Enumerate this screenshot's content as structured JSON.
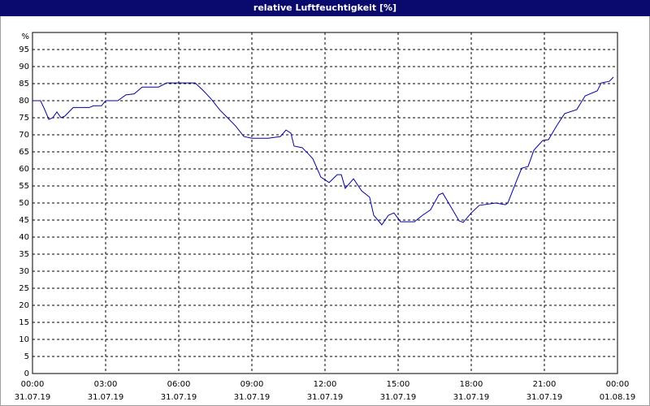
{
  "chart_data": {
    "type": "line",
    "title": "relative Luftfeuchtigkeit [%]",
    "y_label": "%",
    "xlim": [
      0,
      24
    ],
    "xticks": [
      {
        "value": 0,
        "label": "00:00",
        "date": "31.07.19"
      },
      {
        "value": 3,
        "label": "03:00",
        "date": "31.07.19"
      },
      {
        "value": 6,
        "label": "06:00",
        "date": "31.07.19"
      },
      {
        "value": 9,
        "label": "09:00",
        "date": "31.07.19"
      },
      {
        "value": 12,
        "label": "12:00",
        "date": "31.07.19"
      },
      {
        "value": 15,
        "label": "15:00",
        "date": "31.07.19"
      },
      {
        "value": 18,
        "label": "18:00",
        "date": "31.07.19"
      },
      {
        "value": 21,
        "label": "21:00",
        "date": "31.07.19"
      },
      {
        "value": 24,
        "label": "00:00",
        "date": "01.08.19"
      }
    ],
    "ylim": [
      0,
      100
    ],
    "yticks": [
      0,
      5,
      10,
      15,
      20,
      25,
      30,
      35,
      40,
      45,
      50,
      55,
      60,
      65,
      70,
      75,
      80,
      85,
      90,
      95
    ],
    "grid": true,
    "series": [
      {
        "color": "#0000a0",
        "x": [
          0,
          0.33,
          0.5,
          0.67,
          0.83,
          1,
          1.17,
          1.33,
          1.67,
          2.33,
          2.5,
          2.83,
          3,
          3.5,
          3.83,
          4.17,
          4.5,
          5.17,
          5.5,
          6.67,
          7,
          7.33,
          7.67,
          8,
          8.33,
          8.67,
          9,
          9.67,
          10.17,
          10.4,
          10.6,
          10.73,
          11.07,
          11.33,
          11.5,
          11.83,
          12.17,
          12.5,
          12.67,
          12.83,
          13.17,
          13.5,
          13.83,
          14,
          14.33,
          14.6,
          14.83,
          15.1,
          15.67,
          16,
          16.33,
          16.67,
          16.83,
          17.07,
          17.5,
          17.67,
          18,
          18.33,
          19,
          19.4,
          19.5,
          19.83,
          20.07,
          20.33,
          20.57,
          20.93,
          21.17,
          21.5,
          21.83,
          22.33,
          22.67,
          23.17,
          23.33,
          23.67,
          23.83
        ],
        "values": [
          80,
          80,
          77.4,
          74.5,
          75,
          76.7,
          75,
          75.5,
          78,
          78,
          78.5,
          78.5,
          80,
          80,
          81.7,
          82,
          84,
          84,
          85.2,
          85.2,
          83,
          80.5,
          77.4,
          75,
          72.6,
          69.5,
          69,
          69,
          69.5,
          71.4,
          70.5,
          66.7,
          66.2,
          64.3,
          63,
          57.6,
          56,
          58.3,
          58.3,
          54.3,
          57.1,
          53.6,
          51.7,
          46.4,
          43.6,
          46.4,
          47.1,
          44.5,
          44.5,
          46.4,
          48,
          52.4,
          52.9,
          50,
          44.8,
          44.3,
          47.1,
          49.3,
          50,
          49.5,
          50,
          56,
          60.2,
          60.7,
          65.5,
          68.3,
          68.6,
          72.6,
          76.2,
          77.4,
          81.4,
          82.9,
          85.2,
          85.7,
          86.9
        ]
      }
    ]
  }
}
